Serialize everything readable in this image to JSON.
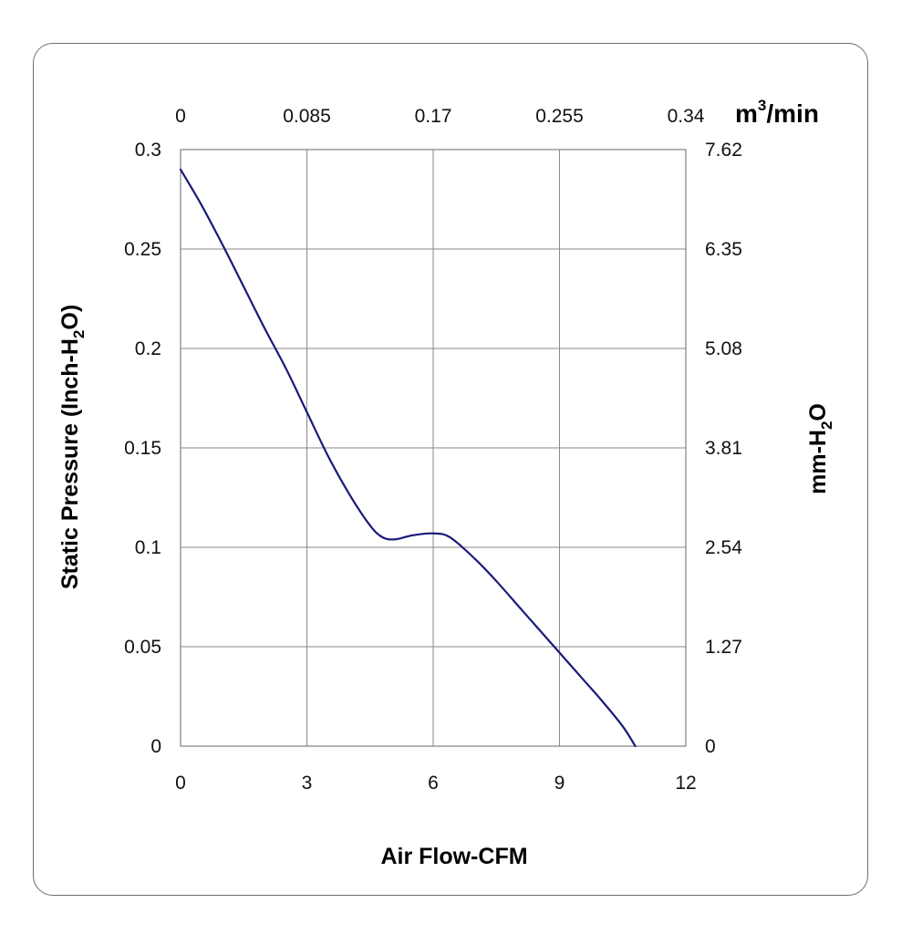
{
  "chart_data": {
    "type": "line",
    "title": "",
    "xlabel": "Air Flow-CFM",
    "ylabel": {
      "main": "Static Pressure (Inch-H",
      "sub": "2",
      "tail": "O)"
    },
    "x2label": {
      "main": "m",
      "sup": "3",
      "tail": "/min"
    },
    "y2label": {
      "main": "mm-H",
      "sub": "2",
      "tail": "O"
    },
    "xlim": [
      0,
      12
    ],
    "ylim": [
      0,
      0.3
    ],
    "grid": true,
    "x_ticks": [
      0,
      3,
      6,
      9,
      12
    ],
    "y_ticks": [
      0,
      0.05,
      0.1,
      0.15,
      0.2,
      0.25,
      0.3
    ],
    "x2_ticks": [
      {
        "x": 0,
        "label": "0"
      },
      {
        "x": 3,
        "label": "0.085"
      },
      {
        "x": 6,
        "label": "0.17"
      },
      {
        "x": 9,
        "label": "0.255"
      },
      {
        "x": 12,
        "label": "0.34"
      }
    ],
    "y2_ticks": [
      {
        "y": 0,
        "label": "0"
      },
      {
        "y": 0.05,
        "label": "1.27"
      },
      {
        "y": 0.1,
        "label": "2.54"
      },
      {
        "y": 0.15,
        "label": "3.81"
      },
      {
        "y": 0.2,
        "label": "5.08"
      },
      {
        "y": 0.25,
        "label": "6.35"
      },
      {
        "y": 0.3,
        "label": "7.62"
      }
    ],
    "series": [
      {
        "color": "#1a1a7a",
        "x": [
          0,
          0.5,
          1,
          1.5,
          2,
          2.5,
          3,
          3.5,
          4,
          4.5,
          4.8,
          5.1,
          5.5,
          6,
          6.4,
          7,
          7.5,
          8,
          8.5,
          9,
          9.5,
          10,
          10.5,
          10.8
        ],
        "y": [
          0.29,
          0.272,
          0.252,
          0.231,
          0.21,
          0.19,
          0.168,
          0.146,
          0.127,
          0.111,
          0.105,
          0.104,
          0.106,
          0.107,
          0.105,
          0.094,
          0.083,
          0.071,
          0.059,
          0.047,
          0.035,
          0.023,
          0.01,
          0
        ]
      }
    ]
  }
}
